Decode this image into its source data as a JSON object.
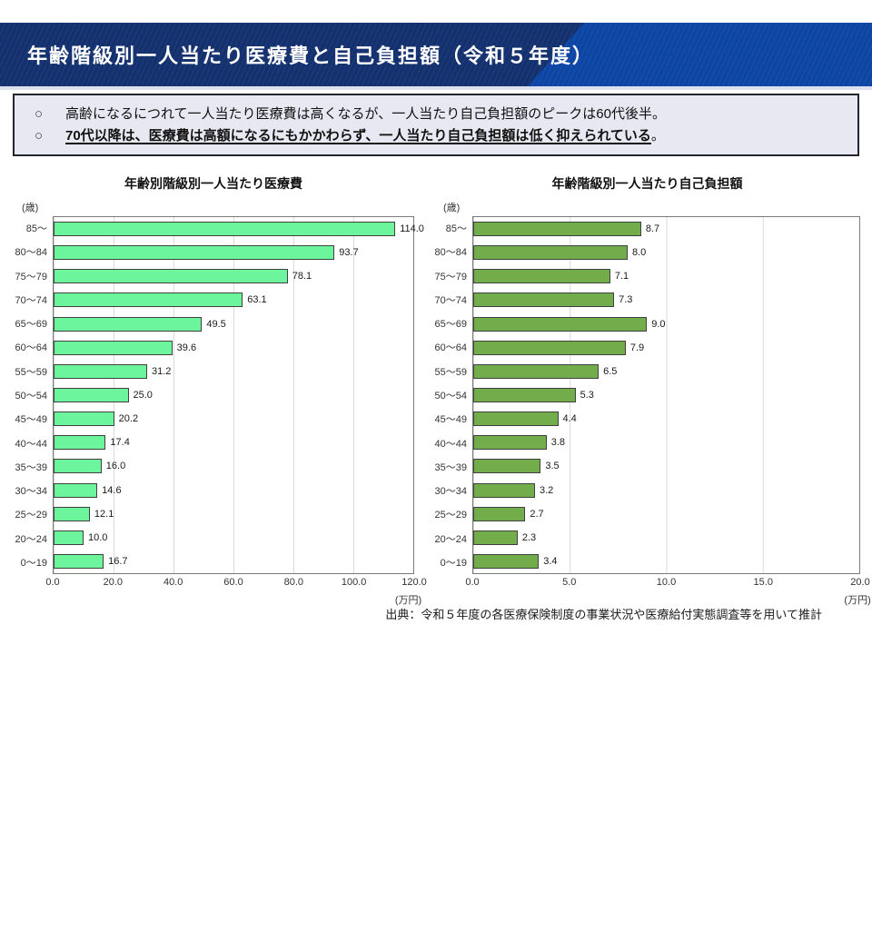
{
  "theme": {
    "banner-dark": "#14316F",
    "banner-light": "#0D45A5",
    "box-bg": "#E8E8F2",
    "bar-green-light": "#6CF59D",
    "bar-green-dark": "#72AC4B"
  },
  "banner": {
    "title": "年齢階級別一人当たり医療費と自己負担額（令和５年度）"
  },
  "summary": {
    "bullet_glyph": "○",
    "bullet_1": "高齢になるにつれて一人当たり医療費は高くなるが、一人当たり自己負担額のピークは60代後半。",
    "bullet_2": "70代以降は、医療費は高額になるにもかかわらず、一人当たり自己負担額は低く抑えられている",
    "bullet_2_suffix": "。"
  },
  "source_note": "出典：令和５年度の各医療保険制度の事業状況や医療給付実態調査等を用いて推計",
  "chart_data": [
    {
      "type": "bar",
      "orientation": "horizontal",
      "title": "年齢別階級別一人当たり医療費",
      "axis_unit_label": "(歳)",
      "value_unit_label": "(万円)",
      "categories": [
        "85〜",
        "80〜84",
        "75〜79",
        "70〜74",
        "65〜69",
        "60〜64",
        "55〜59",
        "50〜54",
        "45〜49",
        "40〜44",
        "35〜39",
        "30〜34",
        "25〜29",
        "20〜24",
        "0〜19"
      ],
      "values": [
        114.0,
        93.7,
        78.1,
        63.1,
        49.5,
        39.6,
        31.2,
        25.0,
        20.2,
        17.4,
        16.0,
        14.6,
        12.1,
        10.0,
        16.7
      ],
      "xlim": [
        0,
        120
      ],
      "x_ticks": [
        "0.0",
        "20.0",
        "40.0",
        "60.0",
        "80.0",
        "100.0",
        "120.0"
      ],
      "bar_color": "#6CF59D",
      "grid": true,
      "legend": "none"
    },
    {
      "type": "bar",
      "orientation": "horizontal",
      "title": "年齢階級別一人当たり自己負担額",
      "axis_unit_label": "(歳)",
      "value_unit_label": "(万円)",
      "categories": [
        "85〜",
        "80〜84",
        "75〜79",
        "70〜74",
        "65〜69",
        "60〜64",
        "55〜59",
        "50〜54",
        "45〜49",
        "40〜44",
        "35〜39",
        "30〜34",
        "25〜29",
        "20〜24",
        "0〜19"
      ],
      "values": [
        8.7,
        8.0,
        7.1,
        7.3,
        9.0,
        7.9,
        6.5,
        5.3,
        4.4,
        3.8,
        3.5,
        3.2,
        2.7,
        2.3,
        3.4
      ],
      "xlim": [
        0,
        20
      ],
      "x_ticks": [
        "0.0",
        "5.0",
        "10.0",
        "15.0",
        "20.0"
      ],
      "bar_color": "#72AC4B",
      "grid": true,
      "legend": "none"
    }
  ]
}
